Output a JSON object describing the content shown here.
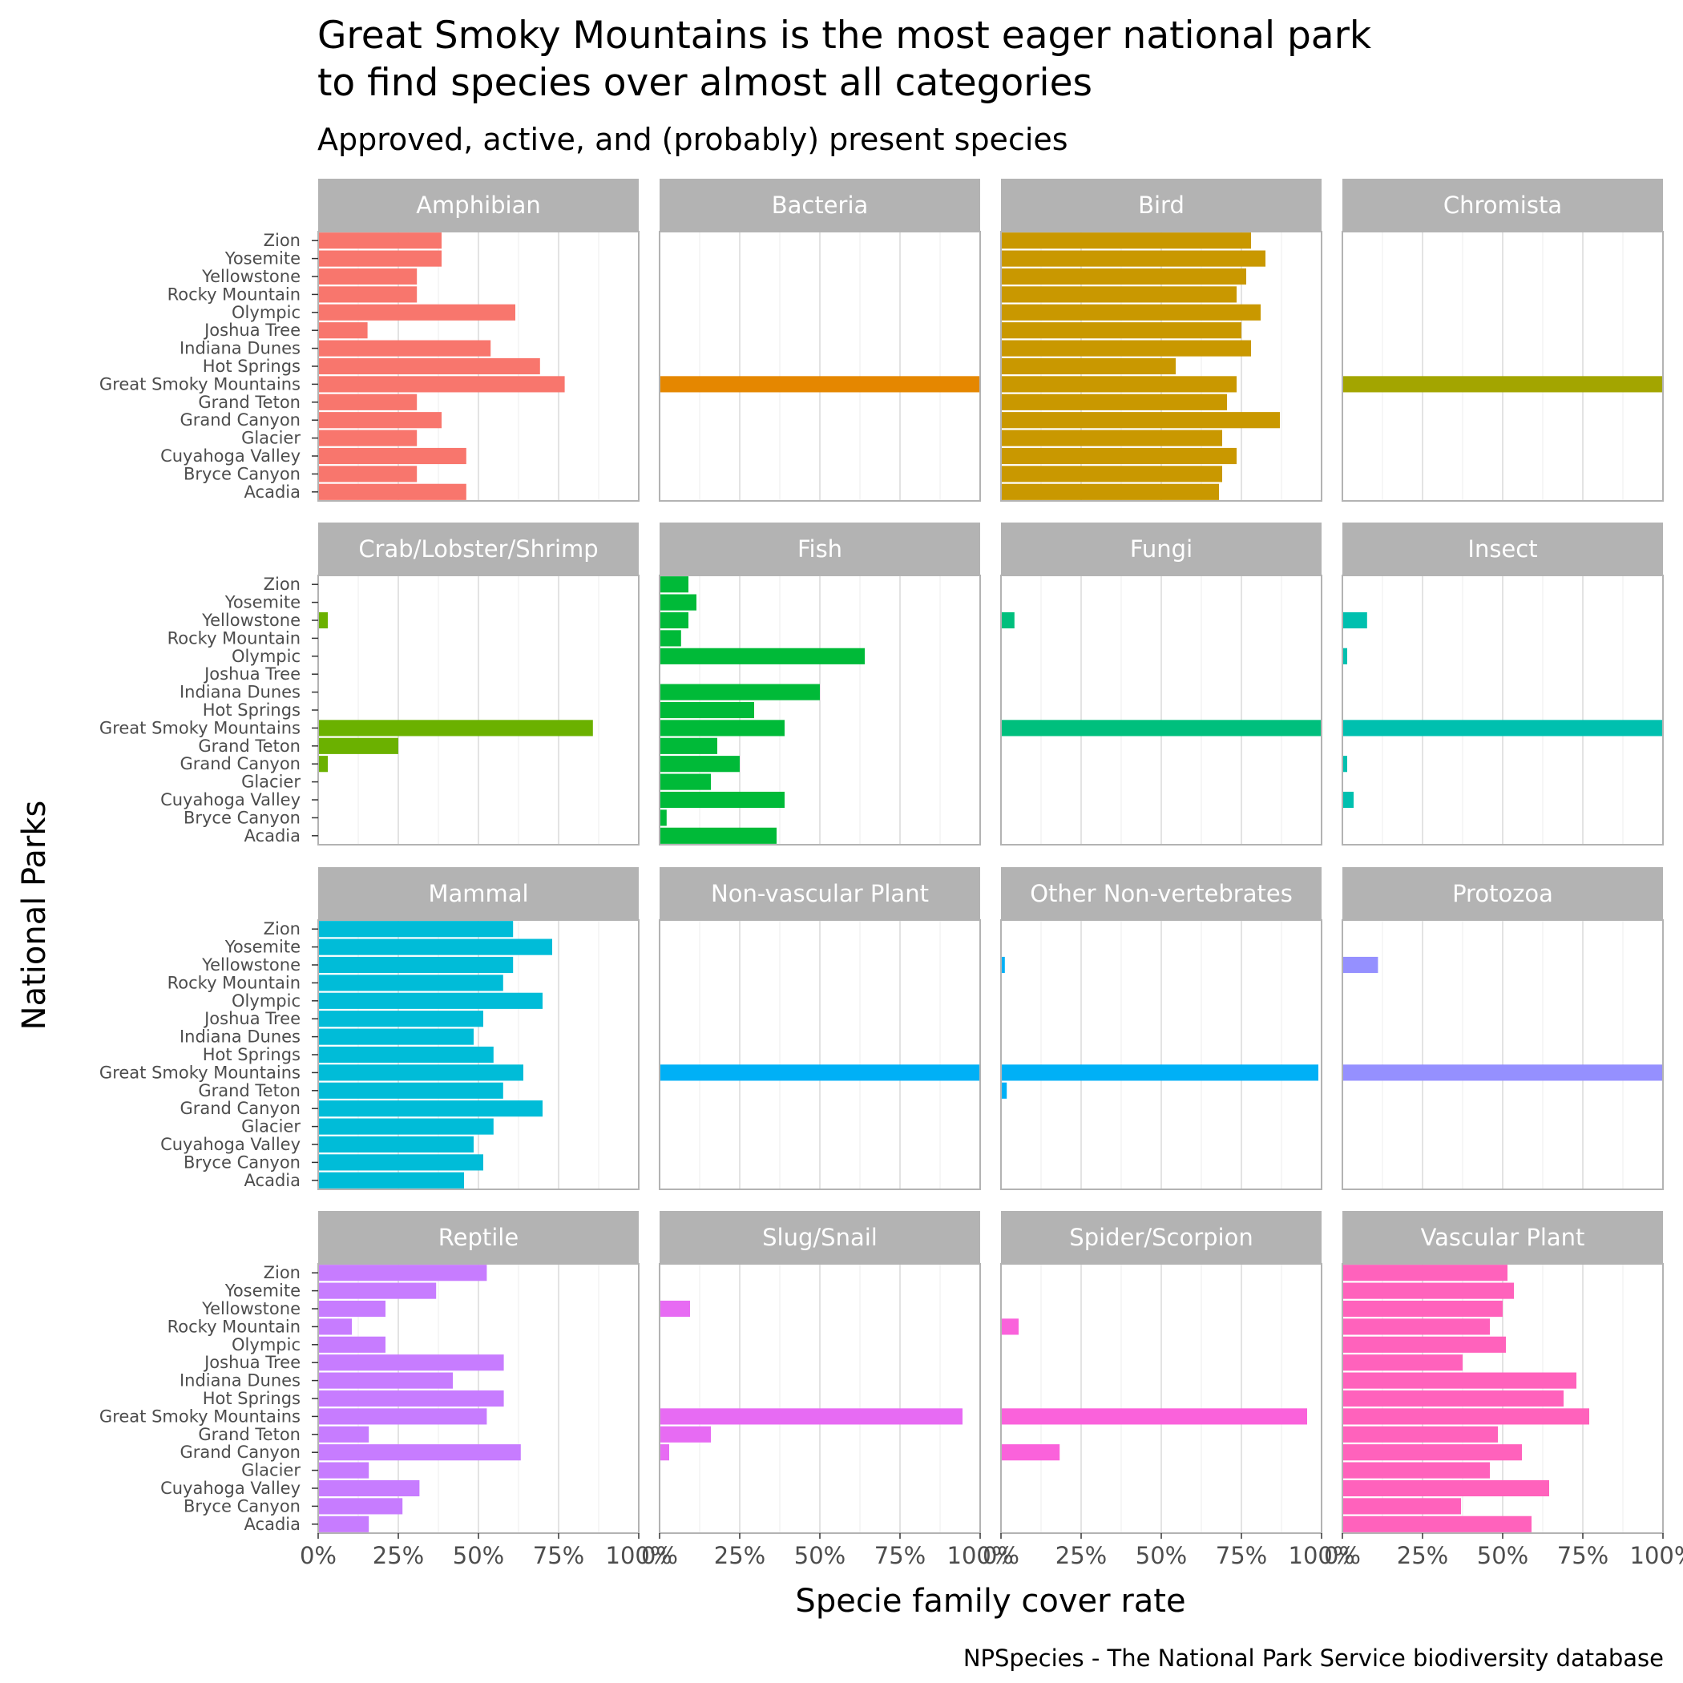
{
  "chart_data": {
    "type": "bar",
    "orientation": "horizontal",
    "title": "Great Smoky Mountains is the most eager national park\nto find species over almost all categories",
    "subtitle": "Approved, active, and (probably) present species",
    "xlabel": "Specie family cover rate",
    "ylabel": "National Parks",
    "caption": "NPSpecies - The National Park Service biodiversity database",
    "xlim": [
      0,
      1
    ],
    "x_ticks": [
      "0%",
      "25%",
      "50%",
      "75%",
      "100%"
    ],
    "grid": true,
    "legend": "none",
    "categories": [
      "Zion",
      "Yosemite",
      "Yellowstone",
      "Rocky Mountain",
      "Olympic",
      "Joshua Tree",
      "Indiana Dunes",
      "Hot Springs",
      "Great Smoky Mountains",
      "Grand Teton",
      "Grand Canyon",
      "Glacier",
      "Cuyahoga Valley",
      "Bryce Canyon",
      "Acadia"
    ],
    "panels": [
      {
        "name": "Amphibian",
        "color": "#F8766D",
        "values": [
          0.385,
          0.385,
          0.308,
          0.308,
          0.615,
          0.154,
          0.538,
          0.692,
          0.769,
          0.308,
          0.385,
          0.308,
          0.462,
          0.308,
          0.462
        ]
      },
      {
        "name": "Bacteria",
        "color": "#E58700",
        "values": [
          0,
          0,
          0,
          0,
          0,
          0,
          0,
          0,
          1.0,
          0,
          0,
          0,
          0,
          0,
          0
        ]
      },
      {
        "name": "Bird",
        "color": "#C99800",
        "values": [
          0.78,
          0.825,
          0.765,
          0.735,
          0.81,
          0.75,
          0.78,
          0.545,
          0.735,
          0.705,
          0.87,
          0.69,
          0.735,
          0.69,
          0.68
        ]
      },
      {
        "name": "Chromista",
        "color": "#A3A500",
        "values": [
          0,
          0,
          0,
          0,
          0,
          0,
          0,
          0,
          1.0,
          0,
          0,
          0,
          0,
          0,
          0
        ]
      },
      {
        "name": "Crab/Lobster/Shrimp",
        "color": "#6BB100",
        "values": [
          0,
          0,
          0.03,
          0,
          0,
          0,
          0,
          0,
          0.857,
          0.25,
          0.03,
          0,
          0,
          0,
          0
        ]
      },
      {
        "name": "Fish",
        "color": "#00BA38",
        "values": [
          0.09,
          0.115,
          0.09,
          0.067,
          0.64,
          0,
          0.5,
          0.295,
          0.39,
          0.18,
          0.25,
          0.16,
          0.39,
          0.022,
          0.365
        ]
      },
      {
        "name": "Fungi",
        "color": "#00BF7D",
        "values": [
          0,
          0,
          0.042,
          0,
          0,
          0,
          0,
          0,
          1.0,
          0,
          0,
          0,
          0,
          0,
          0
        ]
      },
      {
        "name": "Insect",
        "color": "#00C0AF",
        "values": [
          0,
          0,
          0.077,
          0,
          0.015,
          0,
          0,
          0,
          1.0,
          0,
          0.015,
          0,
          0.035,
          0,
          0
        ]
      },
      {
        "name": "Mammal",
        "color": "#00BCD8",
        "values": [
          0.608,
          0.73,
          0.608,
          0.577,
          0.7,
          0.515,
          0.485,
          0.547,
          0.64,
          0.577,
          0.7,
          0.547,
          0.485,
          0.515,
          0.455
        ]
      },
      {
        "name": "Non-vascular Plant",
        "color": "#00B0F6",
        "values": [
          0,
          0,
          0,
          0,
          0,
          0,
          0,
          0,
          1.0,
          0,
          0,
          0,
          0,
          0,
          0
        ]
      },
      {
        "name": "Other Non-vertebrates",
        "color": "#00B0F6",
        "values": [
          0,
          0,
          0.012,
          0,
          0,
          0,
          0,
          0,
          0.99,
          0.018,
          0,
          0,
          0,
          0,
          0
        ]
      },
      {
        "name": "Protozoa",
        "color": "#9590FF",
        "values": [
          0,
          0,
          0.111,
          0,
          0,
          0,
          0,
          0,
          1.0,
          0,
          0,
          0,
          0,
          0,
          0
        ]
      },
      {
        "name": "Reptile",
        "color": "#C77CFF",
        "values": [
          0.526,
          0.368,
          0.21,
          0.105,
          0.21,
          0.579,
          0.42,
          0.579,
          0.526,
          0.158,
          0.632,
          0.158,
          0.316,
          0.263,
          0.158
        ]
      },
      {
        "name": "Slug/Snail",
        "color": "#E76BF3",
        "values": [
          0,
          0,
          0.095,
          0,
          0,
          0,
          0,
          0,
          0.945,
          0.16,
          0.03,
          0,
          0,
          0,
          0
        ]
      },
      {
        "name": "Spider/Scorpion",
        "color": "#FA62DB",
        "values": [
          0,
          0,
          0,
          0.055,
          0,
          0,
          0,
          0,
          0.955,
          0,
          0.183,
          0,
          0,
          0,
          0
        ]
      },
      {
        "name": "Vascular Plant",
        "color": "#FF62BC",
        "values": [
          0.515,
          0.535,
          0.5,
          0.46,
          0.51,
          0.375,
          0.73,
          0.69,
          0.77,
          0.485,
          0.56,
          0.46,
          0.645,
          0.37,
          0.59
        ]
      }
    ]
  }
}
